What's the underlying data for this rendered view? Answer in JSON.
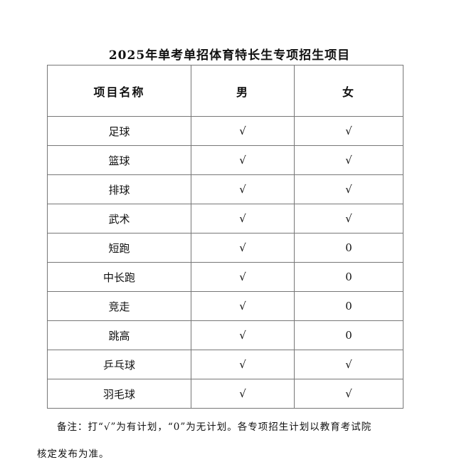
{
  "title": "2025年单考单招体育特长生专项招生项目",
  "table": {
    "headers": [
      "项目名称",
      "男",
      "女"
    ],
    "rows": [
      [
        "足球",
        "√",
        "√"
      ],
      [
        "篮球",
        "√",
        "√"
      ],
      [
        "排球",
        "√",
        "√"
      ],
      [
        "武术",
        "√",
        "√"
      ],
      [
        "短跑",
        "√",
        "0"
      ],
      [
        "中长跑",
        "√",
        "0"
      ],
      [
        "竞走",
        "√",
        "0"
      ],
      [
        "跳高",
        "√",
        "0"
      ],
      [
        "乒乓球",
        "√",
        "√"
      ],
      [
        "羽毛球",
        "√",
        "√"
      ]
    ]
  },
  "note": {
    "line1": "备注：打“√”为有计划，“0”为无计划。各专项招生计划以教育考试院",
    "line2": "核定发布为准。"
  }
}
